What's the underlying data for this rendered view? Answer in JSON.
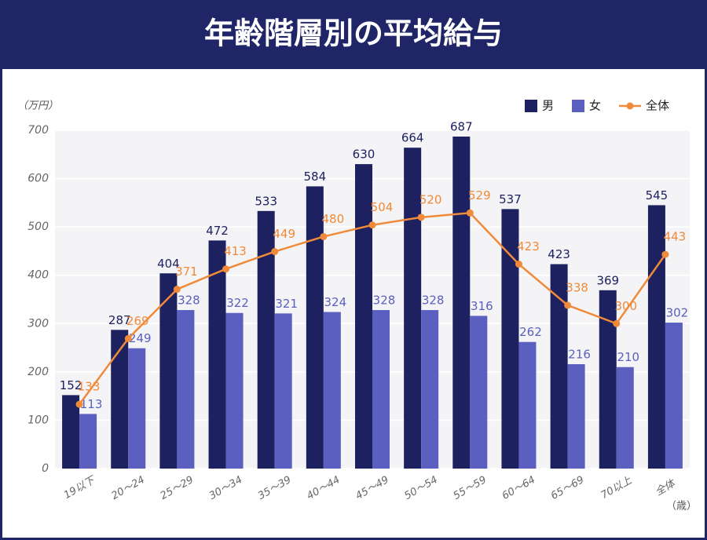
{
  "chart_data": {
    "type": "bar_line",
    "title": "年齢階層別の平均給与",
    "y_unit": "（万円）",
    "x_unit": "（歳）",
    "categories": [
      "19以下",
      "20〜24",
      "25〜29",
      "30〜34",
      "35〜39",
      "40〜44",
      "45〜49",
      "50〜54",
      "55〜59",
      "60〜64",
      "65〜69",
      "70以上",
      "全体"
    ],
    "series": [
      {
        "name": "男",
        "type": "bar",
        "color": "#1e2160",
        "values": [
          152,
          287,
          404,
          472,
          533,
          584,
          630,
          664,
          687,
          537,
          423,
          369,
          545
        ]
      },
      {
        "name": "女",
        "type": "bar",
        "color": "#5b5fc0",
        "values": [
          113,
          249,
          328,
          322,
          321,
          324,
          328,
          328,
          316,
          262,
          216,
          210,
          302
        ]
      },
      {
        "name": "全体",
        "type": "line",
        "color": "#ef8a3a",
        "values": [
          133,
          269,
          371,
          413,
          449,
          480,
          504,
          520,
          529,
          423,
          338,
          300,
          443
        ]
      }
    ],
    "ylim": [
      0,
      700
    ],
    "yticks": [
      0,
      100,
      200,
      300,
      400,
      500,
      600,
      700
    ],
    "grid": true,
    "legend": "top-right"
  }
}
